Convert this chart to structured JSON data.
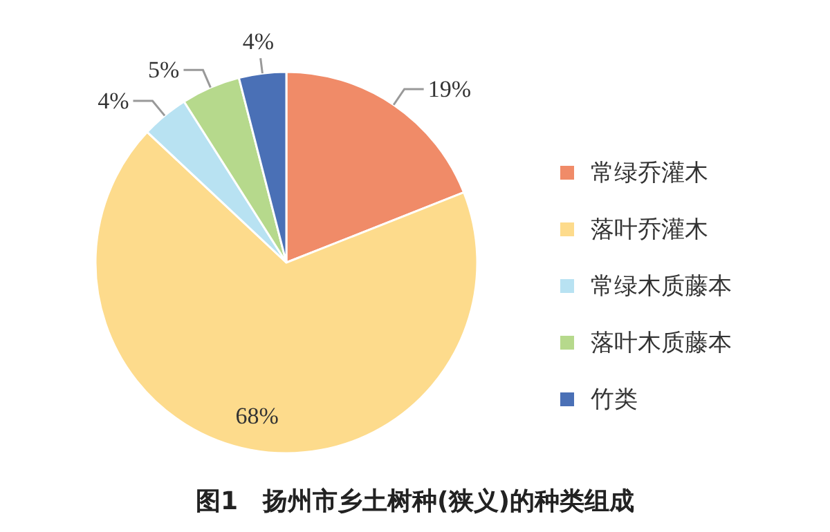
{
  "chart_data": {
    "type": "pie",
    "title": "图1　扬州市乡土树种(狭义)的种类组成",
    "categories": [
      "常绿乔灌木",
      "落叶乔灌木",
      "常绿木质藤本",
      "落叶木质藤本",
      "竹类"
    ],
    "values": [
      19,
      68,
      4,
      5,
      4
    ],
    "colors": [
      "#f08b68",
      "#fddb8c",
      "#b8e2f2",
      "#b6d98c",
      "#4a70b6"
    ],
    "value_labels": [
      "19%",
      "68%",
      "4%",
      "5%",
      "4%"
    ],
    "legend": "right"
  }
}
